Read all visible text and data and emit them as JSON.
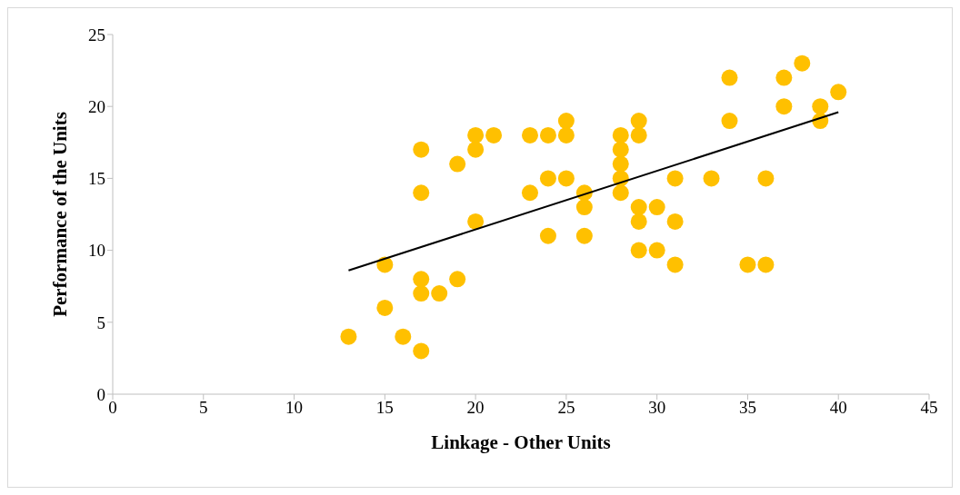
{
  "chart_data": {
    "type": "scatter",
    "xlabel": "Linkage - Other Units",
    "ylabel": "Performance of the Units",
    "xlim": [
      0,
      45
    ],
    "xticks": [
      0,
      5,
      10,
      15,
      20,
      25,
      30,
      35,
      40,
      45
    ],
    "ylim": [
      0,
      25
    ],
    "yticks": [
      0,
      5,
      10,
      15,
      20,
      25
    ],
    "series": [
      {
        "color": "#ffc000",
        "marker": "circle",
        "x": [
          13,
          15,
          15,
          16,
          17,
          17,
          17,
          17,
          17,
          18,
          19,
          19,
          20,
          20,
          20,
          21,
          23,
          23,
          24,
          24,
          24,
          25,
          25,
          25,
          26,
          26,
          26,
          28,
          28,
          28,
          28,
          28,
          29,
          29,
          29,
          29,
          29,
          30,
          30,
          31,
          31,
          31,
          33,
          34,
          34,
          35,
          36,
          36,
          37,
          37,
          38,
          39,
          39,
          40
        ],
        "values": [
          4,
          9,
          6,
          4,
          17,
          14,
          8,
          7,
          3,
          7,
          16,
          8,
          18,
          17,
          12,
          18,
          18,
          14,
          18,
          15,
          11,
          19,
          18,
          15,
          14,
          13,
          11,
          18,
          17,
          16,
          15,
          14,
          19,
          18,
          13,
          12,
          10,
          13,
          10,
          15,
          12,
          9,
          15,
          22,
          19,
          9,
          15,
          9,
          22,
          20,
          23,
          20,
          19,
          21
        ]
      },
      {
        "type": "line",
        "marker": "none",
        "color": "#000000",
        "x": [
          13,
          40
        ],
        "values": [
          8.6,
          19.6
        ]
      }
    ]
  }
}
